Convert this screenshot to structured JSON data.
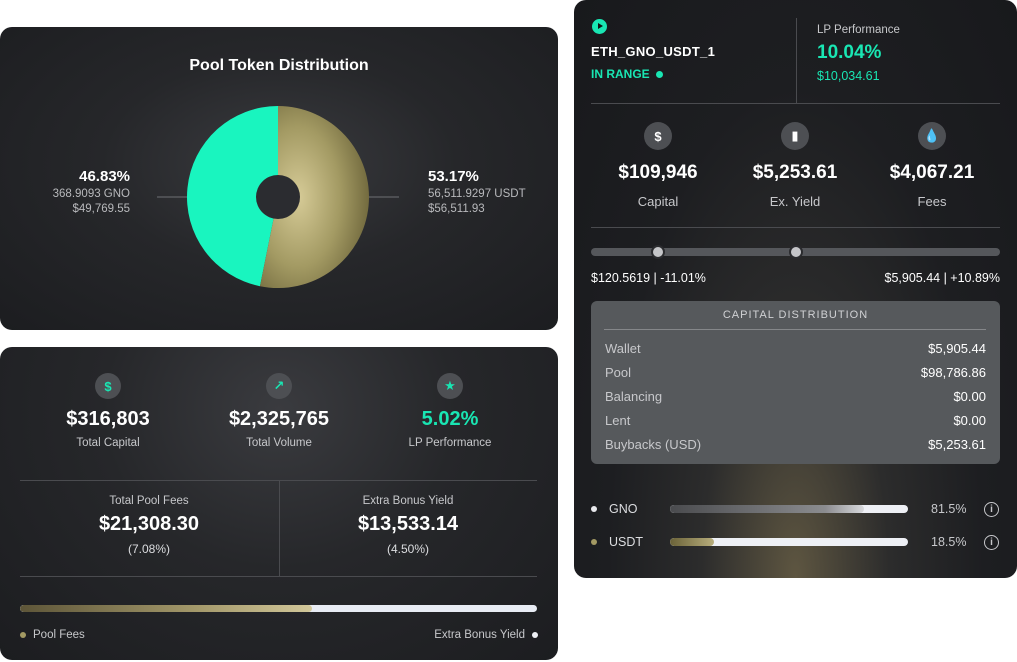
{
  "distribution": {
    "title": "Pool Token Distribution",
    "left": {
      "pct": "46.83%",
      "amount": "368.9093 GNO",
      "usd": "$49,769.55",
      "share": 46.83,
      "color": "#19f5bf"
    },
    "right": {
      "pct": "53.17%",
      "amount": "56,511.9297 USDT",
      "usd": "$56,511.93",
      "share": 53.17,
      "color": "#a39a63"
    }
  },
  "stats": {
    "items": [
      {
        "icon": "$",
        "value": "$316,803",
        "label": "Total Capital"
      },
      {
        "icon": "↗",
        "value": "$2,325,765",
        "label": "Total Volume"
      },
      {
        "icon": "★",
        "value": "5.02%",
        "label": "LP Performance"
      }
    ],
    "fees": {
      "label": "Total Pool Fees",
      "value": "$21,308.30",
      "sub": "(7.08%)"
    },
    "bonus": {
      "label": "Extra Bonus Yield",
      "value": "$13,533.14",
      "sub": "(4.50%)"
    },
    "bar_fill_pct": 56.5,
    "legend_left": "Pool Fees",
    "legend_right": "Extra Bonus Yield"
  },
  "pool": {
    "name": "ETH_GNO_USDT_1",
    "status": "IN RANGE",
    "lp_title": "LP Performance",
    "lp_pct": "10.04%",
    "lp_amount": "$10,034.61",
    "stats": [
      {
        "icon": "$",
        "value": "$109,946",
        "label": "Capital"
      },
      {
        "icon": "▮",
        "value": "$5,253.61",
        "label": "Ex. Yield"
      },
      {
        "icon": "💧",
        "value": "$4,067.21",
        "label": "Fees"
      }
    ],
    "range_low": "$120.5619 | -11.01%",
    "range_high": "$5,905.44 | +10.89%",
    "range_knob_low_pct": 16.3,
    "range_knob_high_pct": 50.2,
    "capital_distribution": {
      "title": "CAPITAL DISTRIBUTION",
      "rows": [
        {
          "key": "Wallet",
          "value": "$5,905.44"
        },
        {
          "key": "Pool",
          "value": "$98,786.86"
        },
        {
          "key": "Balancing",
          "value": "$0.00"
        },
        {
          "key": "Lent",
          "value": "$0.00"
        },
        {
          "key": "Buybacks (USD)",
          "value": "$5,253.61"
        }
      ]
    },
    "tokens": [
      {
        "name": "GNO",
        "pct": "81.5%",
        "share": 81.5,
        "dot_color": "#e8e9ec"
      },
      {
        "name": "USDT",
        "pct": "18.5%",
        "share": 18.5,
        "dot_color": "#a39a63"
      }
    ],
    "info_glyph": "i"
  }
}
